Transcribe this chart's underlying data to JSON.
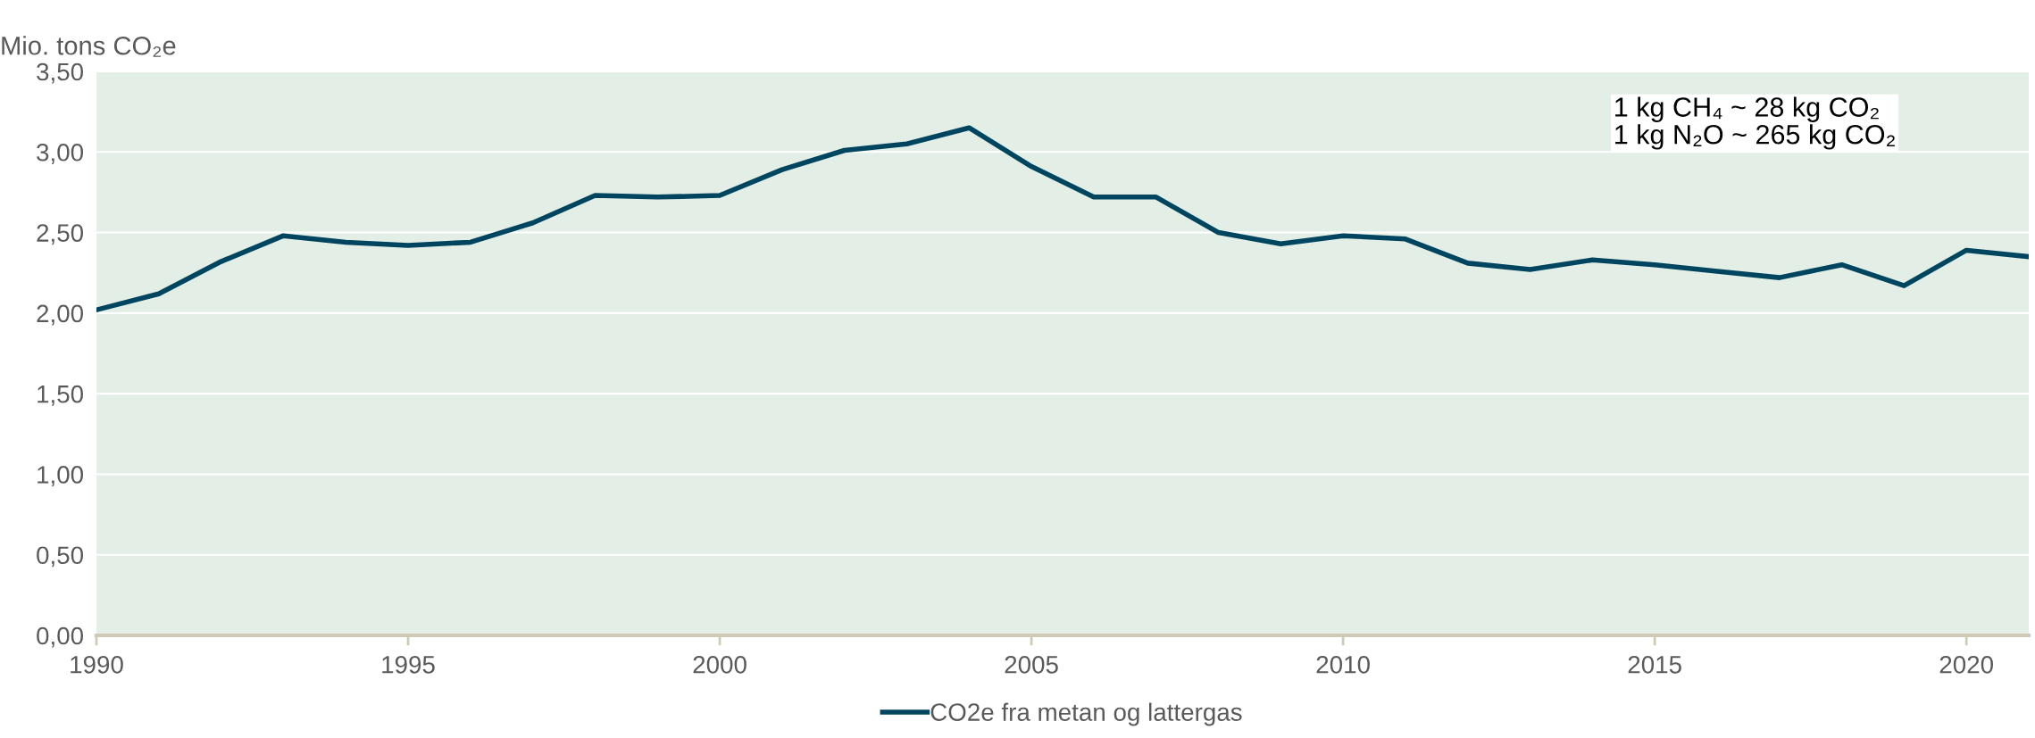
{
  "chart_data": {
    "type": "line",
    "title": "Mio. tons CO₂e",
    "x": [
      1990,
      1991,
      1992,
      1993,
      1994,
      1995,
      1996,
      1997,
      1998,
      1999,
      2000,
      2001,
      2002,
      2003,
      2004,
      2005,
      2006,
      2007,
      2008,
      2009,
      2010,
      2011,
      2012,
      2013,
      2014,
      2015,
      2016,
      2017,
      2018,
      2019,
      2020,
      2021
    ],
    "series": [
      {
        "name": "CO2e fra metan og lattergas",
        "color": "#004560",
        "values": [
          2.02,
          2.12,
          2.32,
          2.48,
          2.44,
          2.42,
          2.44,
          2.56,
          2.73,
          2.72,
          2.73,
          2.89,
          3.01,
          3.05,
          3.15,
          2.91,
          2.72,
          2.72,
          2.5,
          2.43,
          2.48,
          2.46,
          2.31,
          2.27,
          2.33,
          2.3,
          2.26,
          2.22,
          2.3,
          2.17,
          2.39,
          2.35
        ]
      }
    ],
    "xlim": [
      1990,
      2021
    ],
    "xticks": [
      1990,
      1995,
      2000,
      2005,
      2010,
      2015,
      2020
    ],
    "ylim": [
      0,
      3.5
    ],
    "yticks": [
      {
        "value": 0,
        "label": "0,00"
      },
      {
        "value": 0.5,
        "label": "0,50"
      },
      {
        "value": 1,
        "label": "1,00"
      },
      {
        "value": 1.5,
        "label": "1,50"
      },
      {
        "value": 2,
        "label": "2,00"
      },
      {
        "value": 2.5,
        "label": "2,50"
      },
      {
        "value": 3,
        "label": "3,00"
      },
      {
        "value": 3.5,
        "label": "3,50"
      }
    ],
    "annotations": [
      "1 kg CH₄ ~ 28 kg CO₂\n1 kg N₂O ~ 265 kg CO₂"
    ],
    "grid": "y",
    "legend": "bottom",
    "marker": "none",
    "line_style": "solid"
  }
}
